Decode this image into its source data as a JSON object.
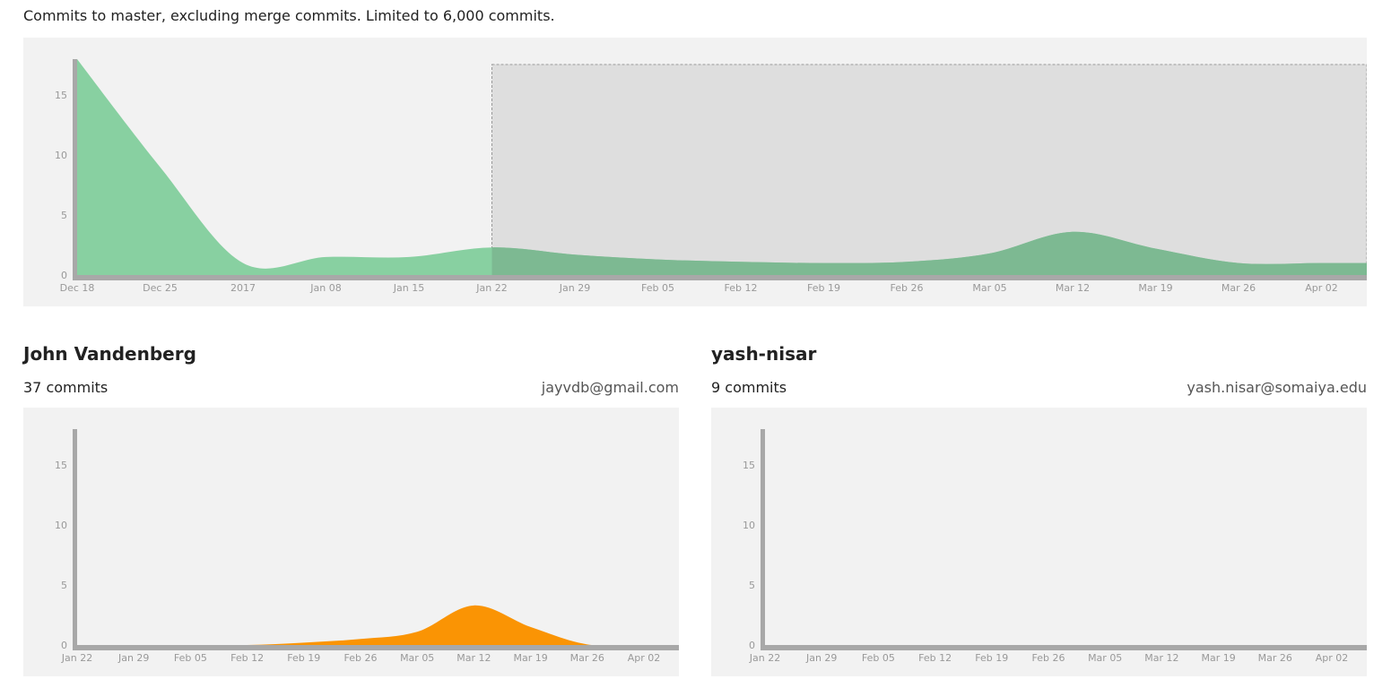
{
  "caption": "Commits to master, excluding merge commits. Limited to 6,000 commits.",
  "colors": {
    "main_area": "#88d0a1",
    "selected_area": "#7db992",
    "contributor_area": "#fa9404",
    "axis": "#a8a8a8",
    "panel": "#f2f2f2",
    "selection": "#dedede"
  },
  "contributors": [
    {
      "name": "John Vandenberg",
      "commits_label": "37 commits",
      "email": "jayvdb@gmail.com"
    },
    {
      "name": "yash-nisar",
      "commits_label": "9 commits",
      "email": "yash.nisar@somaiya.edu"
    }
  ],
  "chart_data": [
    {
      "type": "area",
      "id": "all-contributors",
      "x": [
        "Dec 18",
        "Dec 25",
        "2017",
        "Jan 08",
        "Jan 15",
        "Jan 22",
        "Jan 29",
        "Feb 05",
        "Feb 12",
        "Feb 19",
        "Feb 26",
        "Mar 05",
        "Mar 12",
        "Mar 19",
        "Mar 26",
        "Apr 02",
        "Apr 06"
      ],
      "series": [
        {
          "values": [
            18,
            9,
            1,
            1.5,
            1.5,
            2.3,
            1.7,
            1.3,
            1.1,
            1,
            1.1,
            1.8,
            3.6,
            2.2,
            1,
            1,
            1
          ]
        }
      ],
      "yticks": [
        0,
        5,
        10,
        15
      ],
      "xticks": [
        "Dec 18",
        "Dec 25",
        "2017",
        "Jan 08",
        "Jan 15",
        "Jan 22",
        "Jan 29",
        "Feb 05",
        "Feb 12",
        "Feb 19",
        "Feb 26",
        "Mar 05",
        "Mar 12",
        "Mar 19",
        "Mar 26",
        "Apr 02"
      ],
      "ylim": [
        0,
        18
      ],
      "selection_range": [
        "Jan 22",
        "Apr 06"
      ]
    },
    {
      "type": "area",
      "id": "john-vandenberg",
      "x": [
        "Jan 22",
        "Jan 29",
        "Feb 05",
        "Feb 12",
        "Feb 19",
        "Feb 26",
        "Mar 05",
        "Mar 12",
        "Mar 19",
        "Mar 26",
        "Apr 02",
        "Apr 06"
      ],
      "series": [
        {
          "values": [
            0,
            0,
            0,
            0,
            0.2,
            0.5,
            1.1,
            3.3,
            1.5,
            0.05,
            0,
            0
          ]
        }
      ],
      "yticks": [
        0,
        5,
        10,
        15
      ],
      "xticks": [
        "Jan 22",
        "Jan 29",
        "Feb 05",
        "Feb 12",
        "Feb 19",
        "Feb 26",
        "Mar 05",
        "Mar 12",
        "Mar 19",
        "Mar 26",
        "Apr 02"
      ],
      "ylim": [
        0,
        18
      ]
    },
    {
      "type": "area",
      "id": "yash-nisar",
      "x": [
        "Jan 22",
        "Jan 29",
        "Feb 05",
        "Feb 12",
        "Feb 19",
        "Feb 26",
        "Mar 05",
        "Mar 12",
        "Mar 19",
        "Mar 26",
        "Apr 02",
        "Apr 06"
      ],
      "series": [
        {
          "values": [
            0,
            0,
            0,
            0,
            0,
            0,
            0,
            0,
            0,
            0,
            0,
            0
          ]
        }
      ],
      "yticks": [
        0,
        5,
        10,
        15
      ],
      "xticks": [
        "Jan 22",
        "Jan 29",
        "Feb 05",
        "Feb 12",
        "Feb 19",
        "Feb 26",
        "Mar 05",
        "Mar 12",
        "Mar 19",
        "Mar 26",
        "Apr 02"
      ],
      "ylim": [
        0,
        18
      ]
    }
  ]
}
